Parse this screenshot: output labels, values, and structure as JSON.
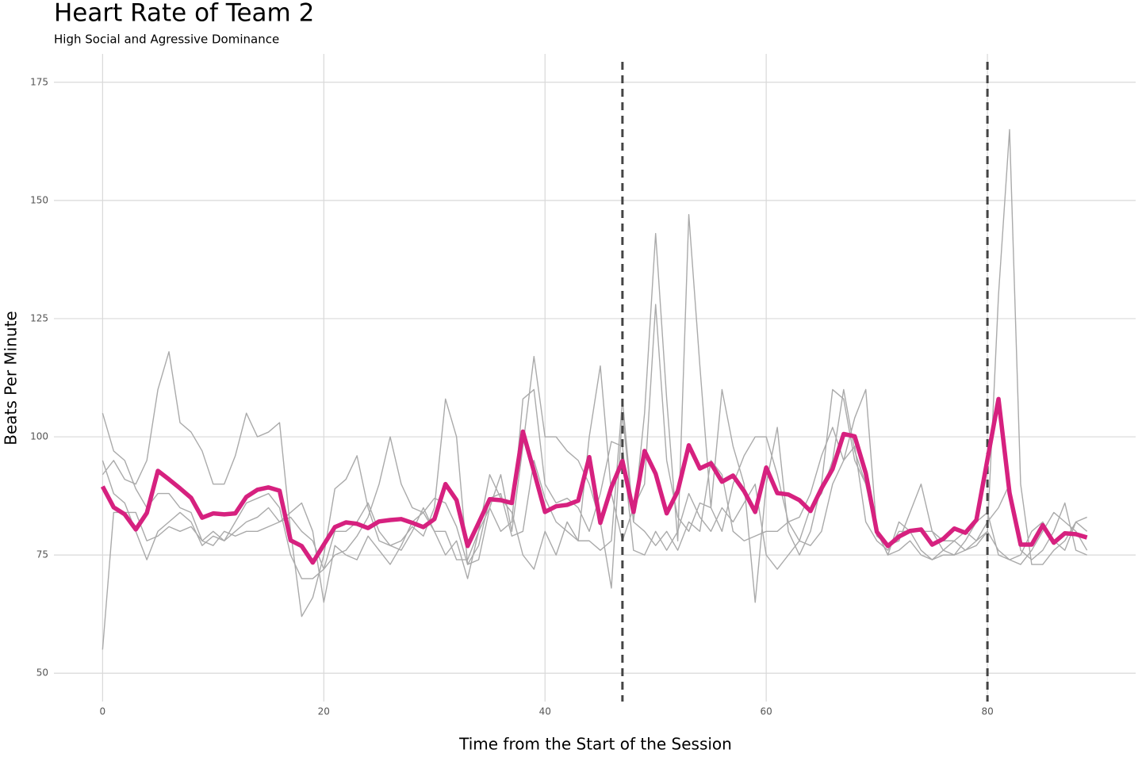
{
  "chart_data": {
    "type": "line",
    "title": "Heart Rate of Team 2",
    "subtitle": "High Social and Agressive Dominance",
    "x_label": "Time from the Start of the Session",
    "y_label": "Beats Per Minute",
    "x": [
      0,
      1,
      2,
      3,
      4,
      5,
      6,
      7,
      8,
      9,
      10,
      11,
      12,
      13,
      14,
      15,
      16,
      17,
      18,
      19,
      20,
      21,
      22,
      23,
      24,
      25,
      26,
      27,
      28,
      29,
      30,
      31,
      32,
      33,
      34,
      35,
      36,
      37,
      38,
      39,
      40,
      41,
      42,
      43,
      44,
      45,
      46,
      47,
      48,
      49,
      50,
      51,
      52,
      53,
      54,
      55,
      56,
      57,
      58,
      59,
      60,
      61,
      62,
      63,
      64,
      65,
      66,
      67,
      68,
      69,
      70,
      71,
      72,
      73,
      74,
      75,
      76,
      77,
      78,
      79,
      80,
      81,
      82,
      83,
      84,
      85,
      86,
      87,
      88,
      89
    ],
    "series": [
      {
        "color": "#aaaaaa",
        "values": [
          92,
          95,
          91,
          90,
          95,
          110,
          118,
          103,
          101,
          97,
          90,
          90,
          96,
          105,
          100,
          101,
          103,
          80,
          62,
          66,
          75,
          89,
          91,
          96,
          85,
          78,
          77,
          78,
          81,
          79,
          85,
          108,
          100,
          73,
          74,
          85,
          92,
          80,
          98,
          117,
          100,
          100,
          97,
          95,
          90,
          82,
          68,
          105,
          82,
          105,
          143,
          108,
          78,
          147,
          115,
          85,
          110,
          98,
          90,
          65,
          90,
          102,
          80,
          75,
          80,
          90,
          110,
          108,
          95,
          90,
          80,
          75,
          76,
          78,
          75,
          74,
          75,
          75,
          76,
          78,
          80,
          130,
          165,
          90,
          73,
          73,
          76,
          78,
          82,
          83
        ]
      },
      {
        "color": "#aaaaaa",
        "values": [
          55,
          84,
          84,
          84,
          78,
          79,
          81,
          80,
          81,
          78,
          80,
          78,
          80,
          82,
          83,
          85,
          82,
          83,
          80,
          78,
          72,
          75,
          76,
          79,
          83,
          90,
          100,
          90,
          85,
          84,
          80,
          75,
          78,
          70,
          80,
          92,
          87,
          84,
          75,
          72,
          80,
          75,
          82,
          78,
          78,
          76,
          78,
          108,
          82,
          80,
          77,
          80,
          76,
          82,
          80,
          95,
          92,
          80,
          78,
          79,
          80,
          80,
          82,
          78,
          85,
          88,
          95,
          110,
          97,
          90,
          79,
          77,
          78,
          84,
          90,
          80,
          76,
          78,
          76,
          77,
          80,
          76,
          74,
          75,
          80,
          82,
          78,
          76,
          82,
          80
        ]
      },
      {
        "color": "#aaaaaa",
        "values": [
          105,
          97,
          95,
          89,
          85,
          88,
          88,
          85,
          84,
          78,
          77,
          80,
          79,
          80,
          80,
          81,
          82,
          84,
          86,
          80,
          65,
          77,
          75,
          74,
          79,
          76,
          73,
          77,
          82,
          84,
          87,
          86,
          81,
          73,
          77,
          87,
          88,
          79,
          80,
          95,
          87,
          82,
          80,
          78,
          100,
          115,
          88,
          78,
          85,
          90,
          128,
          95,
          83,
          80,
          86,
          85,
          80,
          90,
          96,
          100,
          100,
          92,
          82,
          83,
          88,
          96,
          102,
          95,
          104,
          110,
          80,
          75,
          82,
          80,
          76,
          74,
          76,
          75,
          78,
          82,
          84,
          75,
          74,
          73,
          76,
          80,
          84,
          82,
          80,
          76
        ]
      },
      {
        "color": "#aaaaaa",
        "values": [
          95,
          88,
          86,
          80,
          74,
          80,
          82,
          84,
          82,
          77,
          79,
          78,
          82,
          86,
          87,
          88,
          85,
          75,
          70,
          70,
          72,
          80,
          80,
          82,
          86,
          80,
          77,
          76,
          80,
          85,
          80,
          80,
          74,
          74,
          80,
          85,
          80,
          82,
          108,
          110,
          90,
          86,
          87,
          85,
          80,
          88,
          99,
          98,
          76,
          75,
          80,
          76,
          80,
          88,
          83,
          80,
          85,
          82,
          86,
          90,
          75,
          72,
          75,
          78,
          77,
          80,
          90,
          95,
          98,
          82,
          78,
          76,
          80,
          80,
          80,
          80,
          78,
          78,
          80,
          78,
          82,
          85,
          90,
          76,
          74,
          76,
          80,
          86,
          76,
          75
        ]
      },
      {
        "color": "#d6217f",
        "values": [
          89.5,
          85.1,
          83.6,
          80.4,
          83.9,
          92.8,
          91,
          89.1,
          87.1,
          82.9,
          83.8,
          83.6,
          83.8,
          87.3,
          88.8,
          89.3,
          88.6,
          78.1,
          76.9,
          73.4,
          77.2,
          80.9,
          81.9,
          81.6,
          80.7,
          82.1,
          82.4,
          82.6,
          81.8,
          80.9,
          82.6,
          90,
          86.6,
          76.9,
          81.8,
          86.8,
          86.6,
          86,
          101.1,
          92.7,
          84.1,
          85.3,
          85.6,
          86.5,
          95.7,
          81.8,
          89.3,
          94.9,
          84.1,
          97,
          92.2,
          83.8,
          88.5,
          98.2,
          93.3,
          94.4,
          90.5,
          91.8,
          88.5,
          84.1,
          93.5,
          88.1,
          87.8,
          86.6,
          84.3,
          89.1,
          93.2,
          100.6,
          100.1,
          92.3,
          79.9,
          76.9,
          78.9,
          80.1,
          80.4,
          77.2,
          78.4,
          80.6,
          79.7,
          82.4,
          95.2,
          108,
          88.1,
          77.2,
          77.2,
          81.3,
          77.6,
          79.6,
          79.4,
          78.7
        ]
      }
    ],
    "vlines": [
      47,
      80
    ],
    "vline_color": "#444444",
    "xlim": [
      -4.4,
      93.4
    ],
    "ylim": [
      44,
      181
    ],
    "xticks": [
      0,
      20,
      40,
      60,
      80
    ],
    "yticks": [
      50,
      75,
      100,
      125,
      150,
      175
    ],
    "grid": true
  }
}
